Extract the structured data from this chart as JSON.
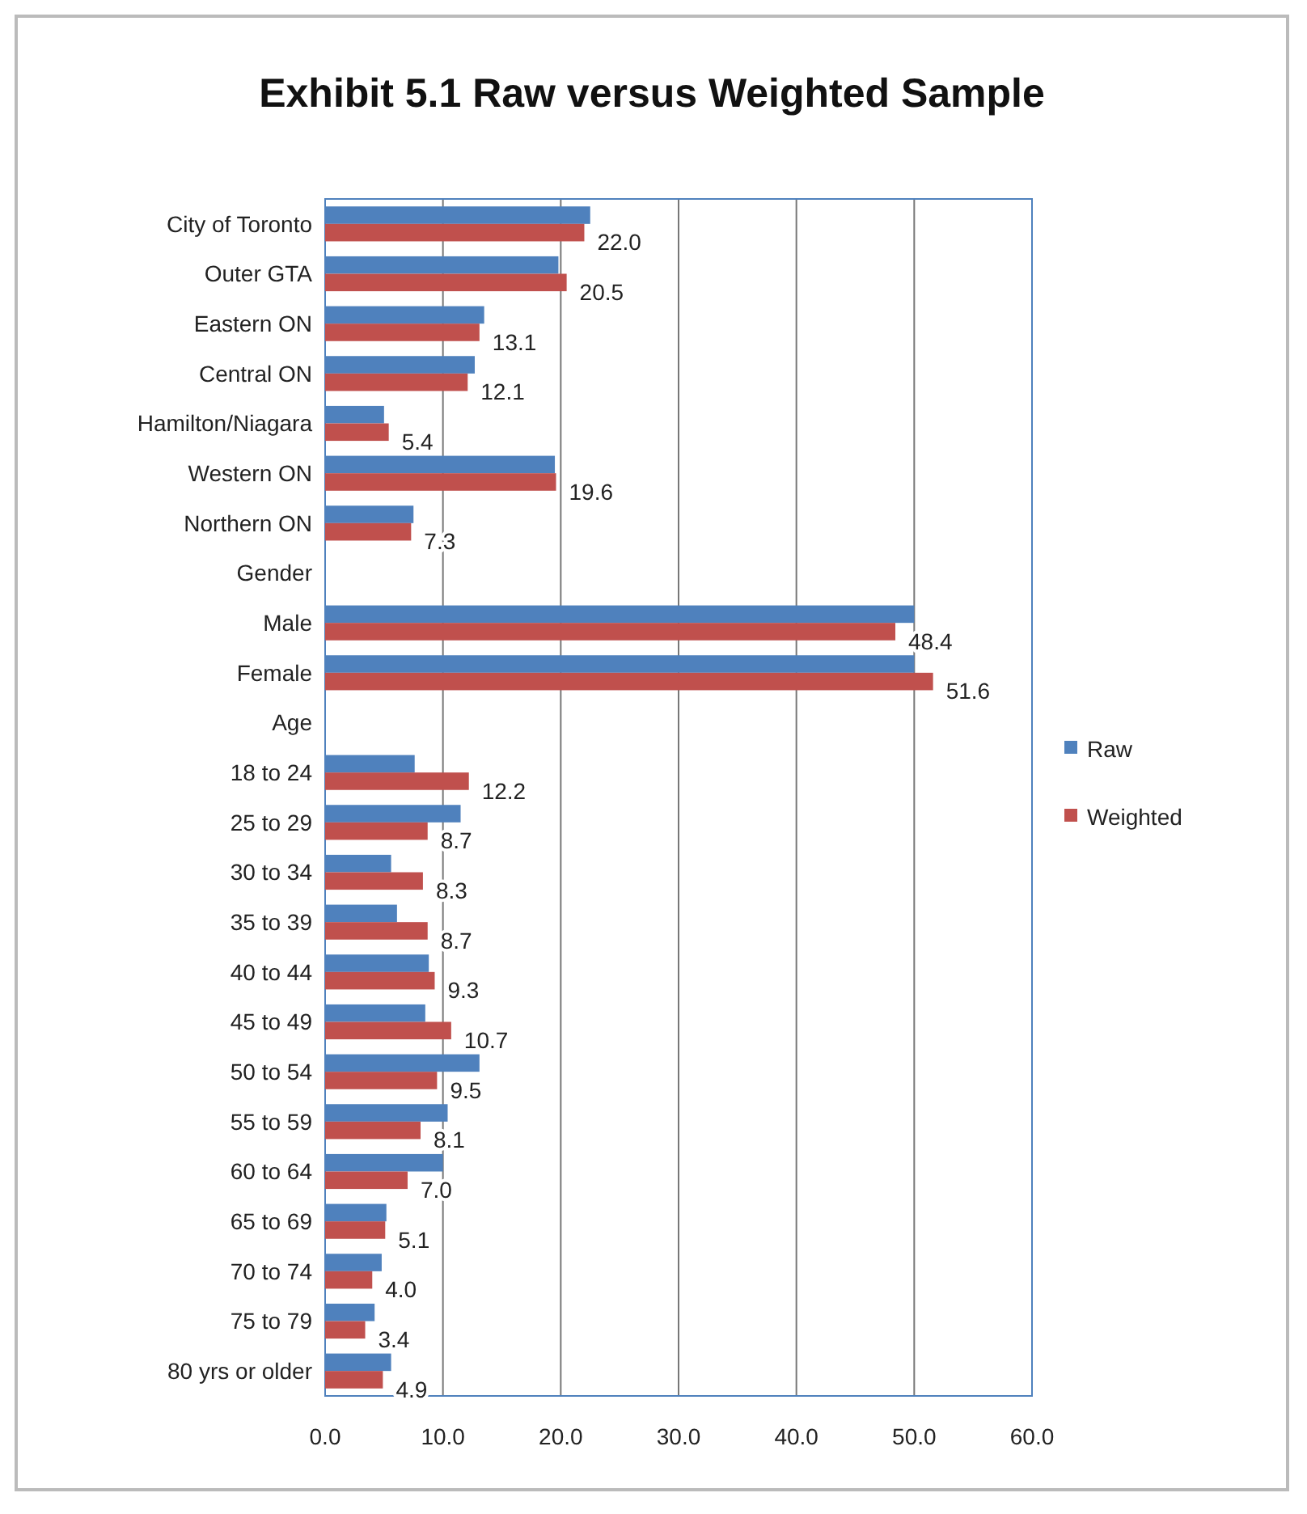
{
  "chart_data": {
    "type": "bar",
    "orientation": "horizontal",
    "title": "Exhibit 5.1  Raw versus Weighted Sample",
    "categories": [
      "City of Toronto",
      "Outer GTA",
      "Eastern ON",
      "Central ON",
      "Hamilton/Niagara",
      "Western ON",
      "Northern ON",
      "Gender",
      "Male",
      "Female",
      "Age",
      "18 to 24",
      "25 to 29",
      "30 to 34",
      "35 to 39",
      "40 to 44",
      "45 to 49",
      "50 to 54",
      "55 to 59",
      "60 to 64",
      "65 to 69",
      "70 to 74",
      "75 to 79",
      "80 yrs or older"
    ],
    "series": [
      {
        "name": "Raw",
        "color": "#4f81bd",
        "values": [
          22.5,
          19.8,
          13.5,
          12.7,
          5.0,
          19.5,
          7.5,
          null,
          50.0,
          50.0,
          null,
          7.6,
          11.5,
          5.6,
          6.1,
          8.8,
          8.5,
          13.1,
          10.4,
          10.0,
          5.2,
          4.8,
          4.2,
          5.6
        ]
      },
      {
        "name": "Weighted",
        "color": "#c0504d",
        "values": [
          22.0,
          20.5,
          13.1,
          12.1,
          5.4,
          19.6,
          7.3,
          null,
          48.4,
          51.6,
          null,
          12.2,
          8.7,
          8.3,
          8.7,
          9.3,
          10.7,
          9.5,
          8.1,
          7.0,
          5.1,
          4.0,
          3.4,
          4.9
        ],
        "value_labels": [
          "22.0",
          "20.5",
          "13.1",
          "12.1",
          "5.4",
          "19.6",
          "7.3",
          null,
          "48.4",
          "51.6",
          null,
          "12.2",
          "8.7",
          "8.3",
          "8.7",
          "9.3",
          "10.7",
          "9.5",
          "8.1",
          "7.0",
          "5.1",
          "4.0",
          "3.4",
          "4.9"
        ]
      }
    ],
    "xlim": [
      0,
      60
    ],
    "xticks": [
      {
        "value": 0,
        "label": "0.0"
      },
      {
        "value": 10,
        "label": "10.0"
      },
      {
        "value": 20,
        "label": "20.0"
      },
      {
        "value": 30,
        "label": "30.0"
      },
      {
        "value": 40,
        "label": "40.0"
      },
      {
        "value": 50,
        "label": "50.0"
      },
      {
        "value": 60,
        "label": "60.0"
      }
    ],
    "grid": "x",
    "legend": "right"
  }
}
